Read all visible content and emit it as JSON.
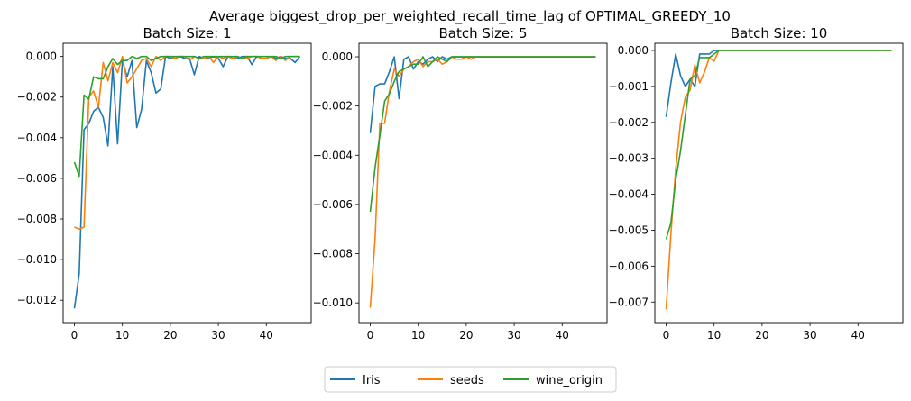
{
  "figure": {
    "title": "Average biggest_drop_per_weighted_recall_time_lag of OPTIMAL_GREEDY_10"
  },
  "legend": {
    "placement": "bottom-center",
    "entries": [
      {
        "name": "Iris",
        "color": "#1f77b4"
      },
      {
        "name": "seeds",
        "color": "#ff7f0e"
      },
      {
        "name": "wine_origin",
        "color": "#2ca02c"
      }
    ]
  },
  "chart_data": [
    {
      "type": "line",
      "title": "Batch Size: 1",
      "xlim": [
        -2.35,
        49.35
      ],
      "ylim": [
        -0.0131,
        0.00065
      ],
      "xticks": [
        0,
        10,
        20,
        30,
        40
      ],
      "xtick_labels": [
        "0",
        "10",
        "20",
        "30",
        "40"
      ],
      "yticks": [
        -0.012,
        -0.01,
        -0.008,
        -0.006,
        -0.004,
        -0.002,
        0.0
      ],
      "ytick_labels": [
        "−0.012",
        "−0.010",
        "−0.008",
        "−0.006",
        "−0.004",
        "−0.002",
        "0.000"
      ],
      "series": [
        {
          "name": "Iris",
          "color": "#1f77b4",
          "x": [
            0,
            1,
            2,
            3,
            4,
            5,
            6,
            7,
            8,
            9,
            10,
            11,
            12,
            13,
            14,
            15,
            16,
            17,
            18,
            19,
            20,
            21,
            22,
            23,
            24,
            25,
            26,
            27,
            28,
            29,
            30,
            31,
            32,
            33,
            34,
            35,
            36,
            37,
            38,
            39,
            40,
            41,
            42,
            43,
            44,
            45,
            46,
            47
          ],
          "y": [
            -0.0124,
            -0.0107,
            -0.0036,
            -0.0033,
            -0.0027,
            -0.0025,
            -0.003,
            -0.0044,
            -0.0005,
            -0.0043,
            -0.0002,
            -0.001,
            -0.0002,
            -0.0035,
            -0.0026,
            -0.0002,
            -0.0008,
            -0.0018,
            -0.0016,
            0.0,
            -0.0001,
            -0.0001,
            0.0,
            -0.0001,
            -0.0001,
            -0.0009,
            0.0,
            -0.0001,
            -0.0001,
            0.0,
            -0.0001,
            -0.0005,
            0.0,
            -0.0001,
            -0.0001,
            0.0,
            0.0,
            -0.0004,
            0.0,
            -0.0001,
            -0.0001,
            0.0,
            -0.0001,
            0.0,
            -0.0001,
            -0.0001,
            -0.0003,
            0.0
          ]
        },
        {
          "name": "seeds",
          "color": "#ff7f0e",
          "x": [
            0,
            1,
            2,
            3,
            4,
            5,
            6,
            7,
            8,
            9,
            10,
            11,
            12,
            13,
            14,
            15,
            16,
            17,
            18,
            19,
            20,
            21,
            22,
            23,
            24,
            25,
            26,
            27,
            28,
            29,
            30,
            31,
            32,
            33,
            34,
            35,
            36,
            37,
            38,
            39,
            40,
            41,
            42,
            43,
            44,
            45,
            46,
            47
          ],
          "y": [
            -0.0084,
            -0.0085,
            -0.0084,
            -0.002,
            -0.0017,
            -0.0025,
            -0.0003,
            -0.0012,
            -0.0003,
            -0.0008,
            0.0,
            -0.0013,
            -0.001,
            -0.0006,
            -0.0002,
            -0.0001,
            -0.0005,
            0.0,
            -0.0002,
            0.0,
            0.0,
            -0.0001,
            0.0,
            0.0,
            -0.0002,
            0.0,
            -0.0001,
            -0.0001,
            0.0,
            -0.0003,
            0.0,
            -0.0001,
            0.0,
            -0.0001,
            0.0,
            -0.0001,
            -0.0001,
            0.0,
            0.0,
            -0.0001,
            -0.0001,
            0.0,
            -0.0002,
            0.0,
            -0.0002,
            0.0,
            0.0,
            0.0
          ]
        },
        {
          "name": "wine_origin",
          "color": "#2ca02c",
          "x": [
            0,
            1,
            2,
            3,
            4,
            5,
            6,
            7,
            8,
            9,
            10,
            11,
            12,
            13,
            14,
            15,
            16,
            17,
            18,
            19,
            20,
            21,
            22,
            23,
            24,
            25,
            26,
            27,
            28,
            29,
            30,
            31,
            32,
            33,
            34,
            35,
            36,
            37,
            38,
            39,
            40,
            41,
            42,
            43,
            44,
            45,
            46,
            47
          ],
          "y": [
            -0.0052,
            -0.0059,
            -0.0019,
            -0.0021,
            -0.001,
            -0.0011,
            -0.0011,
            -0.0005,
            -0.0001,
            -0.0004,
            -0.0002,
            -0.0002,
            0.0,
            -0.0001,
            0.0,
            0.0,
            -0.0002,
            -0.0001,
            0.0,
            0.0,
            0.0,
            0.0,
            0.0,
            0.0,
            0.0,
            0.0,
            -0.0001,
            0.0,
            0.0,
            0.0,
            0.0,
            0.0,
            0.0,
            0.0,
            0.0,
            -0.0001,
            0.0,
            0.0,
            0.0,
            0.0,
            0.0,
            0.0,
            0.0,
            -0.0001,
            0.0,
            0.0,
            0.0,
            0.0
          ]
        }
      ]
    },
    {
      "type": "line",
      "title": "Batch Size: 5",
      "xlim": [
        -2.35,
        49.35
      ],
      "ylim": [
        -0.0108,
        0.00055
      ],
      "xticks": [
        0,
        10,
        20,
        30,
        40
      ],
      "xtick_labels": [
        "0",
        "10",
        "20",
        "30",
        "40"
      ],
      "yticks": [
        -0.01,
        -0.008,
        -0.006,
        -0.004,
        -0.002,
        0.0
      ],
      "ytick_labels": [
        "−0.010",
        "−0.008",
        "−0.006",
        "−0.004",
        "−0.002",
        "0.000"
      ],
      "series": [
        {
          "name": "Iris",
          "color": "#1f77b4",
          "x": [
            0,
            1,
            2,
            3,
            4,
            5,
            6,
            7,
            8,
            9,
            10,
            11,
            12,
            13,
            14,
            15,
            16,
            17,
            18,
            19,
            20,
            21,
            22,
            23,
            24,
            25,
            26,
            27,
            28,
            29,
            30,
            31,
            32,
            33,
            34,
            35,
            36,
            37,
            38,
            39,
            40,
            41,
            42,
            43,
            44,
            45,
            46,
            47
          ],
          "y": [
            -0.0031,
            -0.0012,
            -0.0011,
            -0.0011,
            -0.0006,
            0.0,
            -0.0017,
            -0.0001,
            0.0,
            -0.0005,
            -0.0002,
            -0.0003,
            -0.0001,
            0.0,
            -0.0002,
            0.0,
            -0.0001,
            0.0,
            0.0,
            0.0,
            0.0,
            0.0,
            0.0,
            0.0,
            0.0,
            0.0,
            0.0,
            0.0,
            0.0,
            0.0,
            0.0,
            0.0,
            0.0,
            0.0,
            0.0,
            0.0,
            0.0,
            0.0,
            0.0,
            0.0,
            0.0,
            0.0,
            0.0,
            0.0,
            0.0,
            0.0,
            0.0,
            0.0
          ]
        },
        {
          "name": "seeds",
          "color": "#ff7f0e",
          "x": [
            0,
            1,
            2,
            3,
            4,
            5,
            6,
            7,
            8,
            9,
            10,
            11,
            12,
            13,
            14,
            15,
            16,
            17,
            18,
            19,
            20,
            21,
            22,
            23,
            24,
            25,
            26,
            27,
            28,
            29,
            30,
            31,
            32,
            33,
            34,
            35,
            36,
            37,
            38,
            39,
            40,
            41,
            42,
            43,
            44,
            45,
            46,
            47
          ],
          "y": [
            -0.0102,
            -0.0074,
            -0.0027,
            -0.0027,
            -0.0014,
            -0.0005,
            -0.0008,
            -0.0005,
            -0.0004,
            -0.0002,
            -0.0001,
            -0.0004,
            -0.0002,
            -0.0002,
            -0.0001,
            -0.0003,
            -0.0002,
            0.0,
            -0.0001,
            -0.0001,
            0.0,
            -0.0001,
            0.0,
            0.0,
            0.0,
            0.0,
            0.0,
            0.0,
            0.0,
            0.0,
            0.0,
            0.0,
            0.0,
            0.0,
            0.0,
            0.0,
            0.0,
            0.0,
            0.0,
            0.0,
            0.0,
            0.0,
            0.0,
            0.0,
            0.0,
            0.0,
            0.0,
            0.0
          ]
        },
        {
          "name": "wine_origin",
          "color": "#2ca02c",
          "x": [
            0,
            1,
            2,
            3,
            4,
            5,
            6,
            7,
            8,
            9,
            10,
            11,
            12,
            13,
            14,
            15,
            16,
            17,
            18,
            19,
            20,
            21,
            22,
            23,
            24,
            25,
            26,
            27,
            28,
            29,
            30,
            31,
            32,
            33,
            34,
            35,
            36,
            37,
            38,
            39,
            40,
            41,
            42,
            43,
            44,
            45,
            46,
            47
          ],
          "y": [
            -0.0063,
            -0.0045,
            -0.0032,
            -0.0018,
            -0.0015,
            -0.001,
            -0.0006,
            -0.0005,
            -0.0004,
            -0.0003,
            -0.0003,
            0.0,
            -0.0004,
            -0.0002,
            0.0,
            -0.0001,
            -0.0002,
            0.0,
            0.0,
            0.0,
            0.0,
            0.0,
            0.0,
            0.0,
            0.0,
            0.0,
            0.0,
            0.0,
            0.0,
            0.0,
            0.0,
            0.0,
            0.0,
            0.0,
            0.0,
            0.0,
            0.0,
            0.0,
            0.0,
            0.0,
            0.0,
            0.0,
            0.0,
            0.0,
            0.0,
            0.0,
            0.0,
            0.0
          ]
        }
      ]
    },
    {
      "type": "line",
      "title": "Batch Size: 10",
      "xlim": [
        -2.35,
        49.35
      ],
      "ylim": [
        -0.00757,
        0.0002
      ],
      "xticks": [
        0,
        10,
        20,
        30,
        40
      ],
      "xtick_labels": [
        "0",
        "10",
        "20",
        "30",
        "40"
      ],
      "yticks": [
        -0.007,
        -0.006,
        -0.005,
        -0.004,
        -0.003,
        -0.002,
        -0.001,
        0.0
      ],
      "ytick_labels": [
        "−0.007",
        "−0.006",
        "−0.005",
        "−0.004",
        "−0.003",
        "−0.002",
        "−0.001",
        "0.000"
      ],
      "series": [
        {
          "name": "Iris",
          "color": "#1f77b4",
          "x": [
            0,
            1,
            2,
            3,
            4,
            5,
            6,
            7,
            8,
            9,
            10,
            11,
            12,
            13,
            14,
            15,
            16,
            17,
            18,
            19,
            20,
            21,
            22,
            23,
            24,
            25,
            26,
            27,
            28,
            29,
            30,
            31,
            32,
            33,
            34,
            35,
            36,
            37,
            38,
            39,
            40,
            41,
            42,
            43,
            44,
            45,
            46,
            47
          ],
          "y": [
            -0.00185,
            -0.0009,
            -0.0001,
            -0.0007,
            -0.001,
            -0.0008,
            -0.001,
            -0.0001,
            -0.0001,
            -0.0001,
            0.0,
            0.0,
            0.0,
            0.0,
            0.0,
            0.0,
            0.0,
            0.0,
            0.0,
            0.0,
            0.0,
            0.0,
            0.0,
            0.0,
            0.0,
            0.0,
            0.0,
            0.0,
            0.0,
            0.0,
            0.0,
            0.0,
            0.0,
            0.0,
            0.0,
            0.0,
            0.0,
            0.0,
            0.0,
            0.0,
            0.0,
            0.0,
            0.0,
            0.0,
            0.0,
            0.0,
            0.0,
            0.0
          ]
        },
        {
          "name": "seeds",
          "color": "#ff7f0e",
          "x": [
            0,
            1,
            2,
            3,
            4,
            5,
            6,
            7,
            8,
            9,
            10,
            11,
            12,
            13,
            14,
            15,
            16,
            17,
            18,
            19,
            20,
            21,
            22,
            23,
            24,
            25,
            26,
            27,
            28,
            29,
            30,
            31,
            32,
            33,
            34,
            35,
            36,
            37,
            38,
            39,
            40,
            41,
            42,
            43,
            44,
            45,
            46,
            47
          ],
          "y": [
            -0.0072,
            -0.0051,
            -0.0033,
            -0.002,
            -0.0013,
            -0.0011,
            -0.0004,
            -0.0009,
            -0.0006,
            -0.0002,
            -0.0003,
            0.0,
            0.0,
            0.0,
            0.0,
            0.0,
            0.0,
            0.0,
            0.0,
            0.0,
            0.0,
            0.0,
            0.0,
            0.0,
            0.0,
            0.0,
            0.0,
            0.0,
            0.0,
            0.0,
            0.0,
            0.0,
            0.0,
            0.0,
            0.0,
            0.0,
            0.0,
            0.0,
            0.0,
            0.0,
            0.0,
            0.0,
            0.0,
            0.0,
            0.0,
            0.0,
            0.0,
            0.0
          ]
        },
        {
          "name": "wine_origin",
          "color": "#2ca02c",
          "x": [
            0,
            1,
            2,
            3,
            4,
            5,
            6,
            7,
            8,
            9,
            10,
            11,
            12,
            13,
            14,
            15,
            16,
            17,
            18,
            19,
            20,
            21,
            22,
            23,
            24,
            25,
            26,
            27,
            28,
            29,
            30,
            31,
            32,
            33,
            34,
            35,
            36,
            37,
            38,
            39,
            40,
            41,
            42,
            43,
            44,
            45,
            46,
            47
          ],
          "y": [
            -0.00525,
            -0.0048,
            -0.0036,
            -0.0028,
            -0.0018,
            -0.0008,
            -0.0007,
            -0.0002,
            -0.0002,
            -0.0002,
            -0.0001,
            0.0,
            0.0,
            0.0,
            0.0,
            0.0,
            0.0,
            0.0,
            0.0,
            0.0,
            0.0,
            0.0,
            0.0,
            0.0,
            0.0,
            0.0,
            0.0,
            0.0,
            0.0,
            0.0,
            0.0,
            0.0,
            0.0,
            0.0,
            0.0,
            0.0,
            0.0,
            0.0,
            0.0,
            0.0,
            0.0,
            0.0,
            0.0,
            0.0,
            0.0,
            0.0,
            0.0,
            0.0
          ]
        }
      ]
    }
  ]
}
